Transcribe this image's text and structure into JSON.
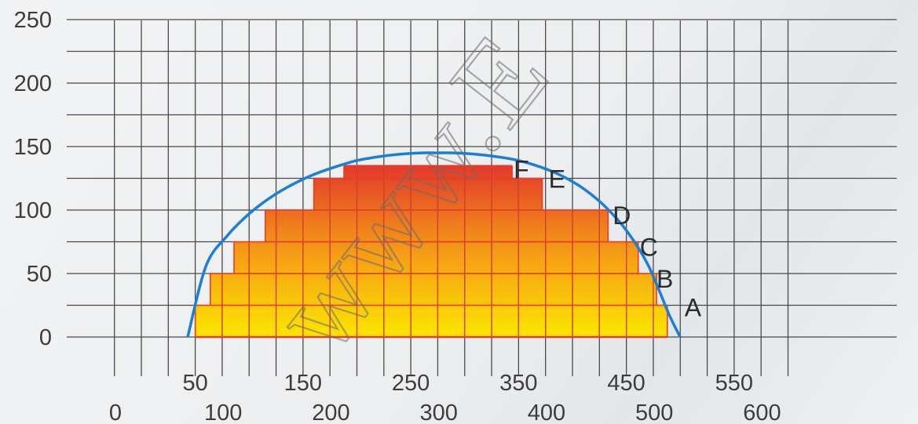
{
  "chart_data": {
    "type": "area",
    "title": "",
    "xlabel": "",
    "ylabel": "",
    "grid": true,
    "ylim": [
      0,
      250
    ],
    "xlim": [
      0,
      600
    ],
    "y_ticks": [
      "0",
      "50",
      "100",
      "150",
      "200",
      "250"
    ],
    "x_ticks_upper": [
      "50",
      "150",
      "250",
      "350",
      "450",
      "550"
    ],
    "x_ticks_lower": [
      "0",
      "100",
      "200",
      "300",
      "400",
      "500",
      "600"
    ],
    "envelope": {
      "color": "#1b7fd6",
      "x": [
        43,
        60,
        80,
        100,
        120,
        140,
        160,
        180,
        200,
        220,
        240,
        260,
        275,
        290,
        310,
        330,
        350,
        370,
        390,
        410,
        430,
        450,
        470,
        490,
        500
      ],
      "y": [
        0,
        56,
        80,
        97,
        110,
        120,
        128,
        134,
        139,
        142,
        144,
        145,
        145,
        145,
        144,
        142,
        139,
        134,
        127,
        117,
        103,
        84,
        57,
        17,
        0
      ]
    },
    "regions": [
      {
        "name": "A",
        "x_start": 50,
        "x_end": 488,
        "y": 25
      },
      {
        "name": "B",
        "x_start": 64,
        "x_end": 478,
        "y": 50
      },
      {
        "name": "C",
        "x_start": 86,
        "x_end": 461,
        "y": 75
      },
      {
        "name": "D",
        "x_start": 115,
        "x_end": 433,
        "y": 100
      },
      {
        "name": "E",
        "x_start": 160,
        "x_end": 372,
        "y": 125
      },
      {
        "name": "F",
        "x_start": 188,
        "x_end": 344,
        "y": 135
      }
    ],
    "colors": {
      "bottom": "#fbe600",
      "top": "#e23a2a",
      "step_line": "#ee3a2a",
      "axis_line": "#ee3a2a"
    },
    "watermark": "www.E"
  }
}
